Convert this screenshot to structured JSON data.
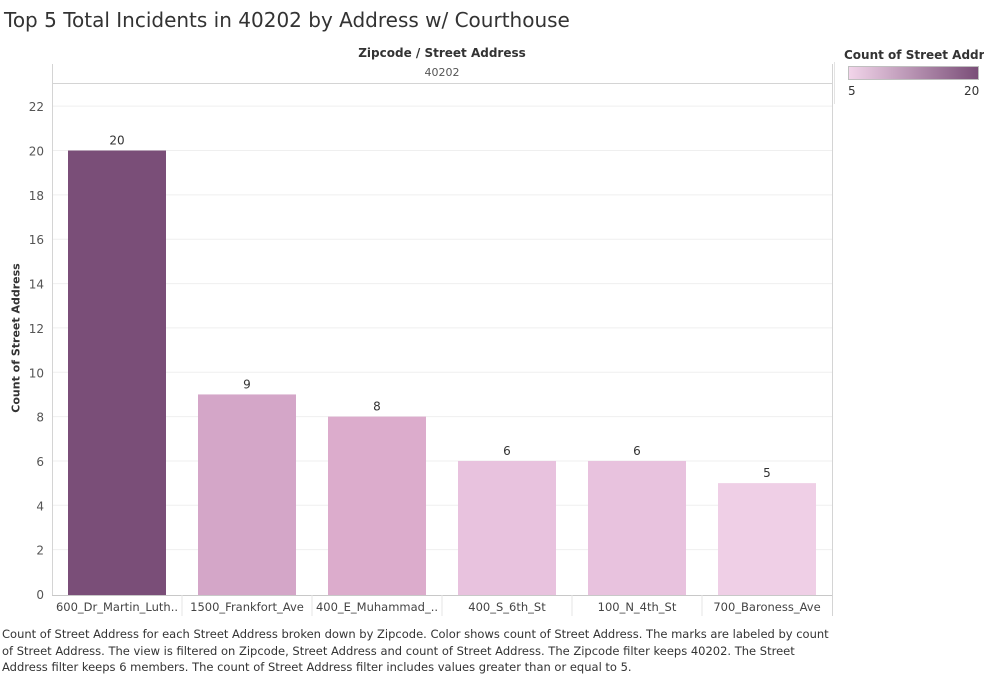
{
  "title": "Top 5 Total Incidents in 40202 by Address w/ Courthouse",
  "header": {
    "column_title": "Zipcode / Street Address",
    "zipcode": "40202"
  },
  "legend": {
    "title": "Count of Street Address",
    "min_label": "5",
    "max_label": "20",
    "color_low": "#f2d5ea",
    "color_high": "#7a4e78"
  },
  "caption": "Count of Street Address for each Street Address broken down by Zipcode.  Color shows count of Street Address.  The marks are labeled by count of Street Address. The view is filtered on Zipcode, Street Address and count of Street Address. The Zipcode filter keeps 40202. The Street Address filter keeps 6 members. The count of Street Address filter includes values greater than or equal to 5.",
  "chart_data": {
    "type": "bar",
    "title": "Top 5 Total Incidents in 40202 by Address w/ Courthouse",
    "ylabel": "Count of Street Address",
    "xlabel": "",
    "categories": [
      "600_Dr_Martin_Luth..",
      "1500_Frankfort_Ave",
      "400_E_Muhammad_..",
      "400_S_6th_St",
      "100_N_4th_St",
      "700_Baroness_Ave"
    ],
    "values": [
      20,
      9,
      8,
      6,
      6,
      5
    ],
    "colors": [
      "#7a4e78",
      "#d4a6c8",
      "#dcaccc",
      "#e8c2de",
      "#e8c2de",
      "#efcfe6"
    ],
    "ylim": [
      0,
      23
    ],
    "yticks": [
      0,
      2,
      4,
      6,
      8,
      10,
      12,
      14,
      16,
      18,
      20,
      22
    ],
    "grid": true,
    "legend_position": "top-right"
  }
}
